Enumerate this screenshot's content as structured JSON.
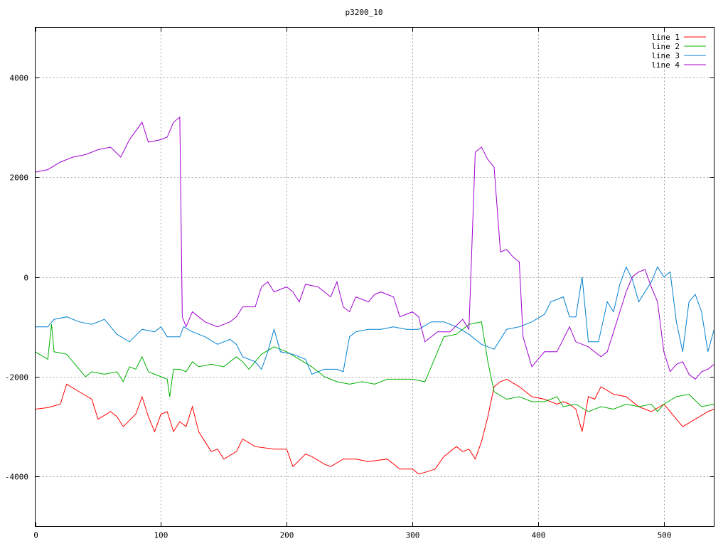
{
  "chart_data": {
    "type": "line",
    "title": "p3200_10",
    "xlabel": "",
    "ylabel": "",
    "xlim": [
      0,
      540
    ],
    "ylim": [
      -5000,
      5000
    ],
    "xticks": [
      0,
      100,
      200,
      300,
      400,
      500
    ],
    "yticks": [
      -4000,
      -2000,
      0,
      2000,
      4000
    ],
    "grid": true,
    "legend_position": "top-right",
    "series": [
      {
        "name": "line 1",
        "color": "#ff0000",
        "points": [
          [
            0,
            -2650
          ],
          [
            10,
            -2620
          ],
          [
            20,
            -2550
          ],
          [
            25,
            -2150
          ],
          [
            35,
            -2300
          ],
          [
            45,
            -2450
          ],
          [
            50,
            -2850
          ],
          [
            60,
            -2700
          ],
          [
            65,
            -2800
          ],
          [
            70,
            -3000
          ],
          [
            80,
            -2750
          ],
          [
            85,
            -2400
          ],
          [
            90,
            -2800
          ],
          [
            95,
            -3100
          ],
          [
            100,
            -2750
          ],
          [
            105,
            -2700
          ],
          [
            110,
            -3100
          ],
          [
            115,
            -2900
          ],
          [
            120,
            -3000
          ],
          [
            125,
            -2600
          ],
          [
            130,
            -3100
          ],
          [
            135,
            -3300
          ],
          [
            140,
            -3500
          ],
          [
            145,
            -3450
          ],
          [
            150,
            -3650
          ],
          [
            160,
            -3500
          ],
          [
            165,
            -3250
          ],
          [
            175,
            -3400
          ],
          [
            190,
            -3450
          ],
          [
            200,
            -3450
          ],
          [
            205,
            -3800
          ],
          [
            215,
            -3550
          ],
          [
            220,
            -3600
          ],
          [
            230,
            -3750
          ],
          [
            235,
            -3800
          ],
          [
            245,
            -3650
          ],
          [
            255,
            -3650
          ],
          [
            265,
            -3700
          ],
          [
            280,
            -3650
          ],
          [
            290,
            -3850
          ],
          [
            300,
            -3850
          ],
          [
            305,
            -3950
          ],
          [
            312,
            -3900
          ],
          [
            318,
            -3850
          ],
          [
            325,
            -3600
          ],
          [
            335,
            -3400
          ],
          [
            340,
            -3500
          ],
          [
            345,
            -3450
          ],
          [
            350,
            -3650
          ],
          [
            355,
            -3300
          ],
          [
            360,
            -2800
          ],
          [
            365,
            -2200
          ],
          [
            370,
            -2100
          ],
          [
            375,
            -2050
          ],
          [
            385,
            -2200
          ],
          [
            395,
            -2400
          ],
          [
            405,
            -2450
          ],
          [
            415,
            -2550
          ],
          [
            420,
            -2500
          ],
          [
            425,
            -2550
          ],
          [
            430,
            -2650
          ],
          [
            435,
            -3100
          ],
          [
            440,
            -2400
          ],
          [
            445,
            -2450
          ],
          [
            450,
            -2200
          ],
          [
            460,
            -2350
          ],
          [
            470,
            -2400
          ],
          [
            480,
            -2600
          ],
          [
            490,
            -2700
          ],
          [
            500,
            -2550
          ],
          [
            510,
            -2850
          ],
          [
            515,
            -3000
          ],
          [
            525,
            -2850
          ],
          [
            535,
            -2700
          ],
          [
            540,
            -2650
          ]
        ]
      },
      {
        "name": "line 2",
        "color": "#00b000",
        "points": [
          [
            0,
            -1500
          ],
          [
            10,
            -1650
          ],
          [
            13,
            -950
          ],
          [
            15,
            -1500
          ],
          [
            25,
            -1550
          ],
          [
            30,
            -1700
          ],
          [
            35,
            -1850
          ],
          [
            40,
            -2000
          ],
          [
            45,
            -1900
          ],
          [
            55,
            -1950
          ],
          [
            65,
            -1900
          ],
          [
            70,
            -2100
          ],
          [
            75,
            -1800
          ],
          [
            80,
            -1850
          ],
          [
            85,
            -1600
          ],
          [
            90,
            -1900
          ],
          [
            95,
            -1950
          ],
          [
            100,
            -2000
          ],
          [
            105,
            -2050
          ],
          [
            107,
            -2400
          ],
          [
            110,
            -1850
          ],
          [
            115,
            -1850
          ],
          [
            120,
            -1900
          ],
          [
            125,
            -1700
          ],
          [
            130,
            -1800
          ],
          [
            140,
            -1750
          ],
          [
            150,
            -1800
          ],
          [
            155,
            -1700
          ],
          [
            160,
            -1600
          ],
          [
            165,
            -1700
          ],
          [
            170,
            -1850
          ],
          [
            175,
            -1700
          ],
          [
            180,
            -1550
          ],
          [
            190,
            -1400
          ],
          [
            200,
            -1500
          ],
          [
            210,
            -1650
          ],
          [
            220,
            -1800
          ],
          [
            230,
            -2000
          ],
          [
            240,
            -2100
          ],
          [
            250,
            -2150
          ],
          [
            260,
            -2100
          ],
          [
            270,
            -2150
          ],
          [
            280,
            -2050
          ],
          [
            290,
            -2050
          ],
          [
            300,
            -2050
          ],
          [
            310,
            -2100
          ],
          [
            315,
            -1800
          ],
          [
            325,
            -1200
          ],
          [
            335,
            -1150
          ],
          [
            345,
            -950
          ],
          [
            355,
            -900
          ],
          [
            360,
            -1700
          ],
          [
            365,
            -2300
          ],
          [
            375,
            -2450
          ],
          [
            385,
            -2400
          ],
          [
            395,
            -2500
          ],
          [
            405,
            -2500
          ],
          [
            415,
            -2400
          ],
          [
            420,
            -2600
          ],
          [
            430,
            -2550
          ],
          [
            440,
            -2700
          ],
          [
            450,
            -2600
          ],
          [
            460,
            -2650
          ],
          [
            470,
            -2550
          ],
          [
            480,
            -2600
          ],
          [
            490,
            -2550
          ],
          [
            495,
            -2700
          ],
          [
            500,
            -2550
          ],
          [
            510,
            -2400
          ],
          [
            520,
            -2350
          ],
          [
            530,
            -2600
          ],
          [
            540,
            -2550
          ]
        ]
      },
      {
        "name": "line 3",
        "color": "#0080d0",
        "points": [
          [
            0,
            -1000
          ],
          [
            10,
            -1000
          ],
          [
            15,
            -850
          ],
          [
            25,
            -800
          ],
          [
            35,
            -900
          ],
          [
            45,
            -950
          ],
          [
            55,
            -850
          ],
          [
            65,
            -1150
          ],
          [
            75,
            -1300
          ],
          [
            85,
            -1050
          ],
          [
            95,
            -1100
          ],
          [
            100,
            -1000
          ],
          [
            105,
            -1200
          ],
          [
            115,
            -1200
          ],
          [
            118,
            -1000
          ],
          [
            125,
            -1100
          ],
          [
            135,
            -1200
          ],
          [
            145,
            -1350
          ],
          [
            155,
            -1250
          ],
          [
            160,
            -1350
          ],
          [
            165,
            -1600
          ],
          [
            175,
            -1700
          ],
          [
            180,
            -1850
          ],
          [
            185,
            -1500
          ],
          [
            190,
            -1050
          ],
          [
            195,
            -1500
          ],
          [
            205,
            -1550
          ],
          [
            215,
            -1650
          ],
          [
            220,
            -1950
          ],
          [
            230,
            -1850
          ],
          [
            240,
            -1850
          ],
          [
            245,
            -1900
          ],
          [
            250,
            -1200
          ],
          [
            255,
            -1100
          ],
          [
            265,
            -1050
          ],
          [
            275,
            -1050
          ],
          [
            285,
            -1000
          ],
          [
            295,
            -1050
          ],
          [
            305,
            -1050
          ],
          [
            315,
            -900
          ],
          [
            325,
            -900
          ],
          [
            335,
            -1000
          ],
          [
            345,
            -1150
          ],
          [
            355,
            -1350
          ],
          [
            365,
            -1450
          ],
          [
            375,
            -1050
          ],
          [
            385,
            -1000
          ],
          [
            395,
            -900
          ],
          [
            405,
            -750
          ],
          [
            410,
            -500
          ],
          [
            420,
            -400
          ],
          [
            425,
            -800
          ],
          [
            430,
            -800
          ],
          [
            435,
            0
          ],
          [
            440,
            -1300
          ],
          [
            448,
            -1300
          ],
          [
            455,
            -500
          ],
          [
            460,
            -700
          ],
          [
            465,
            -150
          ],
          [
            470,
            200
          ],
          [
            475,
            -50
          ],
          [
            480,
            -500
          ],
          [
            485,
            -300
          ],
          [
            490,
            -100
          ],
          [
            495,
            200
          ],
          [
            500,
            0
          ],
          [
            505,
            100
          ],
          [
            510,
            -900
          ],
          [
            515,
            -1500
          ],
          [
            520,
            -500
          ],
          [
            525,
            -350
          ],
          [
            530,
            -700
          ],
          [
            535,
            -1500
          ],
          [
            540,
            -1050
          ]
        ]
      },
      {
        "name": "line 4",
        "color": "#a000d0",
        "points": [
          [
            0,
            2100
          ],
          [
            10,
            2150
          ],
          [
            20,
            2300
          ],
          [
            30,
            2400
          ],
          [
            40,
            2450
          ],
          [
            50,
            2550
          ],
          [
            60,
            2600
          ],
          [
            68,
            2400
          ],
          [
            75,
            2750
          ],
          [
            85,
            3100
          ],
          [
            90,
            2700
          ],
          [
            100,
            2750
          ],
          [
            105,
            2800
          ],
          [
            110,
            3100
          ],
          [
            115,
            3200
          ],
          [
            117,
            -800
          ],
          [
            120,
            -1000
          ],
          [
            125,
            -700
          ],
          [
            135,
            -900
          ],
          [
            145,
            -1000
          ],
          [
            155,
            -900
          ],
          [
            160,
            -800
          ],
          [
            165,
            -600
          ],
          [
            175,
            -600
          ],
          [
            180,
            -200
          ],
          [
            185,
            -100
          ],
          [
            190,
            -300
          ],
          [
            200,
            -200
          ],
          [
            205,
            -300
          ],
          [
            210,
            -500
          ],
          [
            215,
            -150
          ],
          [
            225,
            -200
          ],
          [
            230,
            -300
          ],
          [
            235,
            -400
          ],
          [
            240,
            -100
          ],
          [
            245,
            -600
          ],
          [
            250,
            -700
          ],
          [
            255,
            -400
          ],
          [
            265,
            -500
          ],
          [
            270,
            -350
          ],
          [
            275,
            -300
          ],
          [
            285,
            -400
          ],
          [
            290,
            -800
          ],
          [
            300,
            -700
          ],
          [
            305,
            -800
          ],
          [
            310,
            -1300
          ],
          [
            320,
            -1100
          ],
          [
            330,
            -1100
          ],
          [
            340,
            -850
          ],
          [
            345,
            -1050
          ],
          [
            350,
            2500
          ],
          [
            355,
            2600
          ],
          [
            360,
            2350
          ],
          [
            365,
            2200
          ],
          [
            370,
            500
          ],
          [
            375,
            550
          ],
          [
            380,
            400
          ],
          [
            385,
            300
          ],
          [
            388,
            -1200
          ],
          [
            395,
            -1800
          ],
          [
            405,
            -1500
          ],
          [
            415,
            -1500
          ],
          [
            425,
            -1000
          ],
          [
            430,
            -1300
          ],
          [
            440,
            -1400
          ],
          [
            450,
            -1600
          ],
          [
            455,
            -1500
          ],
          [
            465,
            -700
          ],
          [
            470,
            -300
          ],
          [
            475,
            0
          ],
          [
            480,
            100
          ],
          [
            485,
            150
          ],
          [
            490,
            -200
          ],
          [
            495,
            -500
          ],
          [
            500,
            -1500
          ],
          [
            505,
            -1900
          ],
          [
            510,
            -1750
          ],
          [
            515,
            -1700
          ],
          [
            520,
            -1950
          ],
          [
            525,
            -2050
          ],
          [
            530,
            -1900
          ],
          [
            535,
            -1850
          ],
          [
            540,
            -1750
          ]
        ]
      }
    ]
  }
}
